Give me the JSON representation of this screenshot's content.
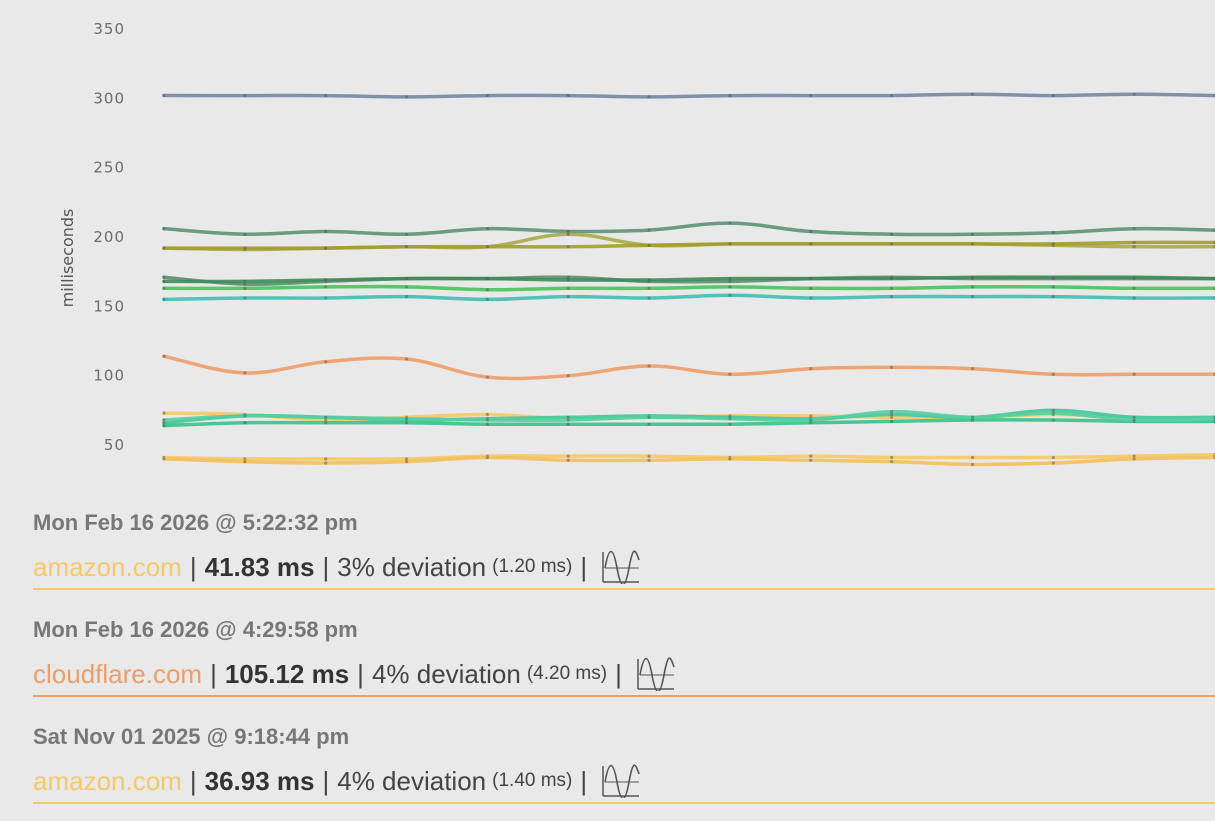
{
  "chart_data": {
    "type": "line",
    "ylabel": "milliseconds",
    "yticks": [
      50,
      100,
      150,
      200,
      250,
      300,
      350
    ],
    "ylim": [
      40,
      350
    ],
    "x": [
      0,
      1,
      2,
      3,
      4,
      5,
      6,
      7,
      8,
      9,
      10,
      11,
      12,
      13
    ],
    "grid": false,
    "series": [
      {
        "color": "#7786a3",
        "values": [
          302,
          302,
          302,
          301,
          302,
          302,
          301,
          302,
          302,
          302,
          303,
          302,
          303,
          302
        ]
      },
      {
        "color": "#5d9274",
        "values": [
          206,
          202,
          204,
          202,
          206,
          204,
          205,
          210,
          204,
          202,
          202,
          203,
          206,
          205
        ]
      },
      {
        "color": "#aaaa47",
        "values": [
          192,
          191,
          192,
          193,
          193,
          202,
          194,
          195,
          195,
          195,
          195,
          194,
          193,
          193
        ]
      },
      {
        "color": "#9ea02c",
        "values": [
          192,
          192,
          192,
          193,
          193,
          193,
          194,
          195,
          195,
          195,
          195,
          195,
          196,
          196
        ]
      },
      {
        "color": "#5e8f6e",
        "values": [
          171,
          166,
          168,
          170,
          170,
          171,
          168,
          168,
          170,
          171,
          170,
          170,
          170,
          170
        ]
      },
      {
        "color": "#3f8c5a",
        "values": [
          168,
          168,
          169,
          170,
          170,
          169,
          169,
          170,
          170,
          170,
          171,
          171,
          171,
          170
        ]
      },
      {
        "color": "#48c35a",
        "values": [
          163,
          163,
          164,
          164,
          162,
          163,
          163,
          164,
          163,
          163,
          164,
          164,
          163,
          163
        ]
      },
      {
        "color": "#3fbfb0",
        "values": [
          155,
          156,
          156,
          157,
          155,
          157,
          156,
          158,
          156,
          157,
          157,
          157,
          156,
          156
        ]
      },
      {
        "color": "#ee9d68",
        "values": [
          114,
          102,
          110,
          112,
          99,
          100,
          107,
          101,
          105,
          106,
          105,
          101,
          101,
          101
        ]
      },
      {
        "color": "#f6c866",
        "values": [
          73,
          72,
          68,
          70,
          72,
          69,
          70,
          71,
          71,
          70,
          70,
          72,
          70,
          70
        ]
      },
      {
        "color": "#3ec9a0",
        "values": [
          66,
          71,
          70,
          68,
          69,
          70,
          71,
          70,
          69,
          72,
          70,
          75,
          70,
          70
        ]
      },
      {
        "color": "#37c28c",
        "values": [
          64,
          66,
          66,
          66,
          65,
          65,
          65,
          65,
          66,
          67,
          68,
          68,
          67,
          67
        ]
      },
      {
        "color": "#56cfa0",
        "values": [
          68,
          71,
          70,
          69,
          68,
          68,
          70,
          69,
          68,
          74,
          70,
          73,
          68,
          69
        ]
      },
      {
        "color": "#f6c866",
        "values": [
          41,
          40,
          40,
          40,
          42,
          42,
          42,
          41,
          42,
          41,
          41,
          41,
          42,
          43
        ]
      },
      {
        "color": "#f3c05a",
        "values": [
          40,
          38,
          37,
          38,
          41,
          39,
          39,
          40,
          39,
          38,
          36,
          37,
          40,
          41
        ]
      }
    ]
  },
  "results": [
    {
      "timestamp": "Mon Feb 16 2026 @ 5:22:32 pm",
      "host": "amazon.com",
      "host_color": "#f6c866",
      "ms": "41.83 ms",
      "deviation": "3% deviation",
      "deviation_ms": "(1.20 ms)",
      "separator": "|",
      "icon": "waveform-icon"
    },
    {
      "timestamp": "Mon Feb 16 2026 @ 4:29:58 pm",
      "host": "cloudflare.com",
      "host_color": "#ee9d68",
      "ms": "105.12 ms",
      "deviation": "4% deviation",
      "deviation_ms": "(4.20 ms)",
      "separator": "|",
      "icon": "waveform-icon"
    },
    {
      "timestamp": "Sat Nov 01 2025 @ 9:18:44 pm",
      "host": "amazon.com",
      "host_color": "#f6c866",
      "ms": "36.93 ms",
      "deviation": "4% deviation",
      "deviation_ms": "(1.40 ms)",
      "separator": "|",
      "icon": "waveform-icon"
    }
  ]
}
